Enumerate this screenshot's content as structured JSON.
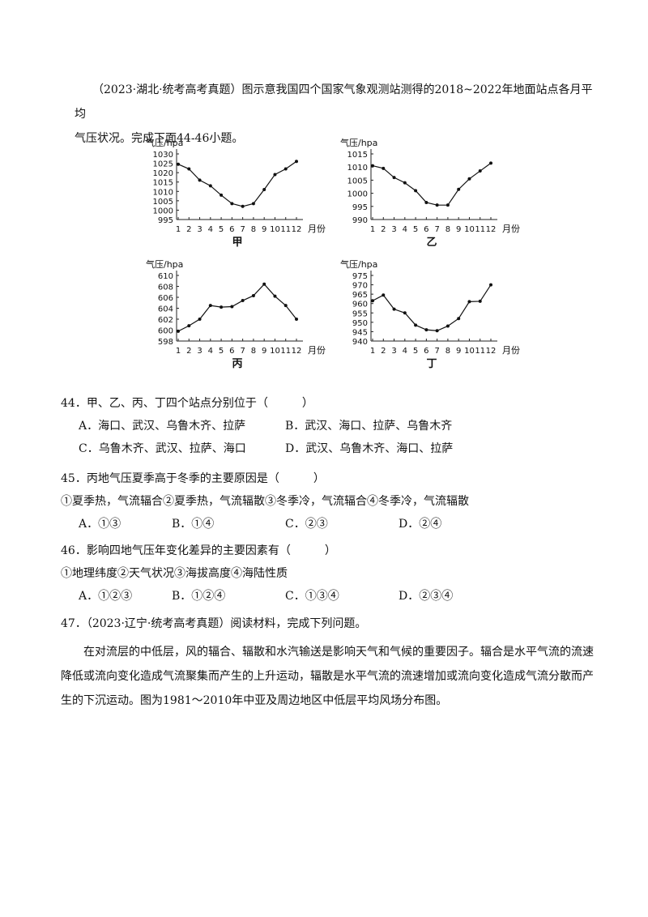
{
  "intro": {
    "line1": "（2023·湖北·统考高考真题）图示意我国四个国家气象观测站测得的2018~2022年地面站点各月平均",
    "line2": "气压状况。完成下面44-46小题。"
  },
  "chart_data": [
    {
      "type": "line",
      "name": "甲",
      "ylabel": "气压/hpa",
      "xlabel": "月份",
      "x": [
        1,
        2,
        3,
        4,
        5,
        6,
        7,
        8,
        9,
        10,
        11,
        12
      ],
      "x_ticks": [
        "1",
        "2",
        "3",
        "4",
        "5",
        "6",
        "7",
        "8",
        "9",
        "10",
        "11",
        "12"
      ],
      "values": [
        1024.5,
        1022,
        1016,
        1013,
        1008,
        1003.5,
        1002,
        1003.5,
        1011,
        1019,
        1022,
        1026
      ],
      "ylim": [
        995,
        1030
      ],
      "y_ticks": [
        995,
        1000,
        1005,
        1010,
        1015,
        1020,
        1025,
        1030
      ]
    },
    {
      "type": "line",
      "name": "乙",
      "ylabel": "气压/hpa",
      "xlabel": "月份",
      "x": [
        1,
        2,
        3,
        4,
        5,
        6,
        7,
        8,
        9,
        10,
        11,
        12
      ],
      "x_ticks": [
        "1",
        "2",
        "3",
        "4",
        "5",
        "6",
        "7",
        "8",
        "9",
        "10",
        "11",
        "12"
      ],
      "values": [
        1010.5,
        1009.5,
        1006,
        1004,
        1001,
        996.5,
        995.5,
        995.5,
        1001.5,
        1005.5,
        1008.5,
        1011.5
      ],
      "ylim": [
        990,
        1015
      ],
      "y_ticks": [
        990,
        995,
        1000,
        1005,
        1010,
        1015
      ]
    },
    {
      "type": "line",
      "name": "丙",
      "ylabel": "气压/hpa",
      "xlabel": "月份",
      "x": [
        1,
        2,
        3,
        4,
        5,
        6,
        7,
        8,
        9,
        10,
        11,
        12
      ],
      "x_ticks": [
        "1",
        "2",
        "3",
        "4",
        "5",
        "6",
        "7",
        "8",
        "9",
        "10",
        "11",
        "12"
      ],
      "values": [
        599.8,
        600.8,
        602,
        604.5,
        604.2,
        604.3,
        605.4,
        606.3,
        608.4,
        606.2,
        604.5,
        602
      ],
      "ylim": [
        598,
        610
      ],
      "y_ticks": [
        598,
        600,
        602,
        604,
        606,
        608,
        610
      ]
    },
    {
      "type": "line",
      "name": "丁",
      "ylabel": "气压/hpa",
      "xlabel": "月份",
      "x": [
        1,
        2,
        3,
        4,
        5,
        6,
        7,
        8,
        9,
        10,
        11,
        12
      ],
      "x_ticks": [
        "1",
        "2",
        "3",
        "4",
        "5",
        "6",
        "7",
        "8",
        "9",
        "10",
        "11",
        "12"
      ],
      "values": [
        961.5,
        964.5,
        957,
        955,
        948.5,
        946,
        945.5,
        948,
        952,
        961,
        961.2,
        970
      ],
      "ylim": [
        940,
        975
      ],
      "y_ticks": [
        940,
        945,
        950,
        955,
        960,
        965,
        970,
        975
      ]
    }
  ],
  "q44": {
    "stem": "44．甲、乙、丙、丁四个站点分别位于（　　　）",
    "a": "A．海口、武汉、乌鲁木齐、拉萨",
    "b": "B．武汉、海口、拉萨、乌鲁木齐",
    "c": "C．乌鲁木齐、武汉、拉萨、海口",
    "d": "D．武汉、乌鲁木齐、海口、拉萨"
  },
  "q45": {
    "stem": "45．丙地气压夏季高于冬季的主要原因是（　　　）",
    "items": "①夏季热，气流辐合②夏季热，气流辐散③冬季冷，气流辐合④冬季冷，气流辐散",
    "a": "A．①③",
    "b": "B．①④",
    "c": "C．②③",
    "d": "D．②④"
  },
  "q46": {
    "stem": "46．影响四地气压年变化差异的主要因素有（　　　）",
    "items": "①地理纬度②天气状况③海拔高度④海陆性质",
    "a": "A．①②③",
    "b": "B．①②④",
    "c": "C．①③④",
    "d": "D．②③④"
  },
  "q47": {
    "stem": "47．（2023·辽宁·统考高考真题）阅读材料，完成下列问题。",
    "para": "在对流层的中低层，风的辐合、辐散和水汽输送是影响天气和气候的重要因子。辐合是水平气流的流速降低或流向变化造成气流聚集而产生的上升运动，辐散是水平气流的流速增加或流向变化造成气流分散而产生的下沉运动。图为1981～2010年中亚及周边地区中低层平均风场分布图。"
  }
}
